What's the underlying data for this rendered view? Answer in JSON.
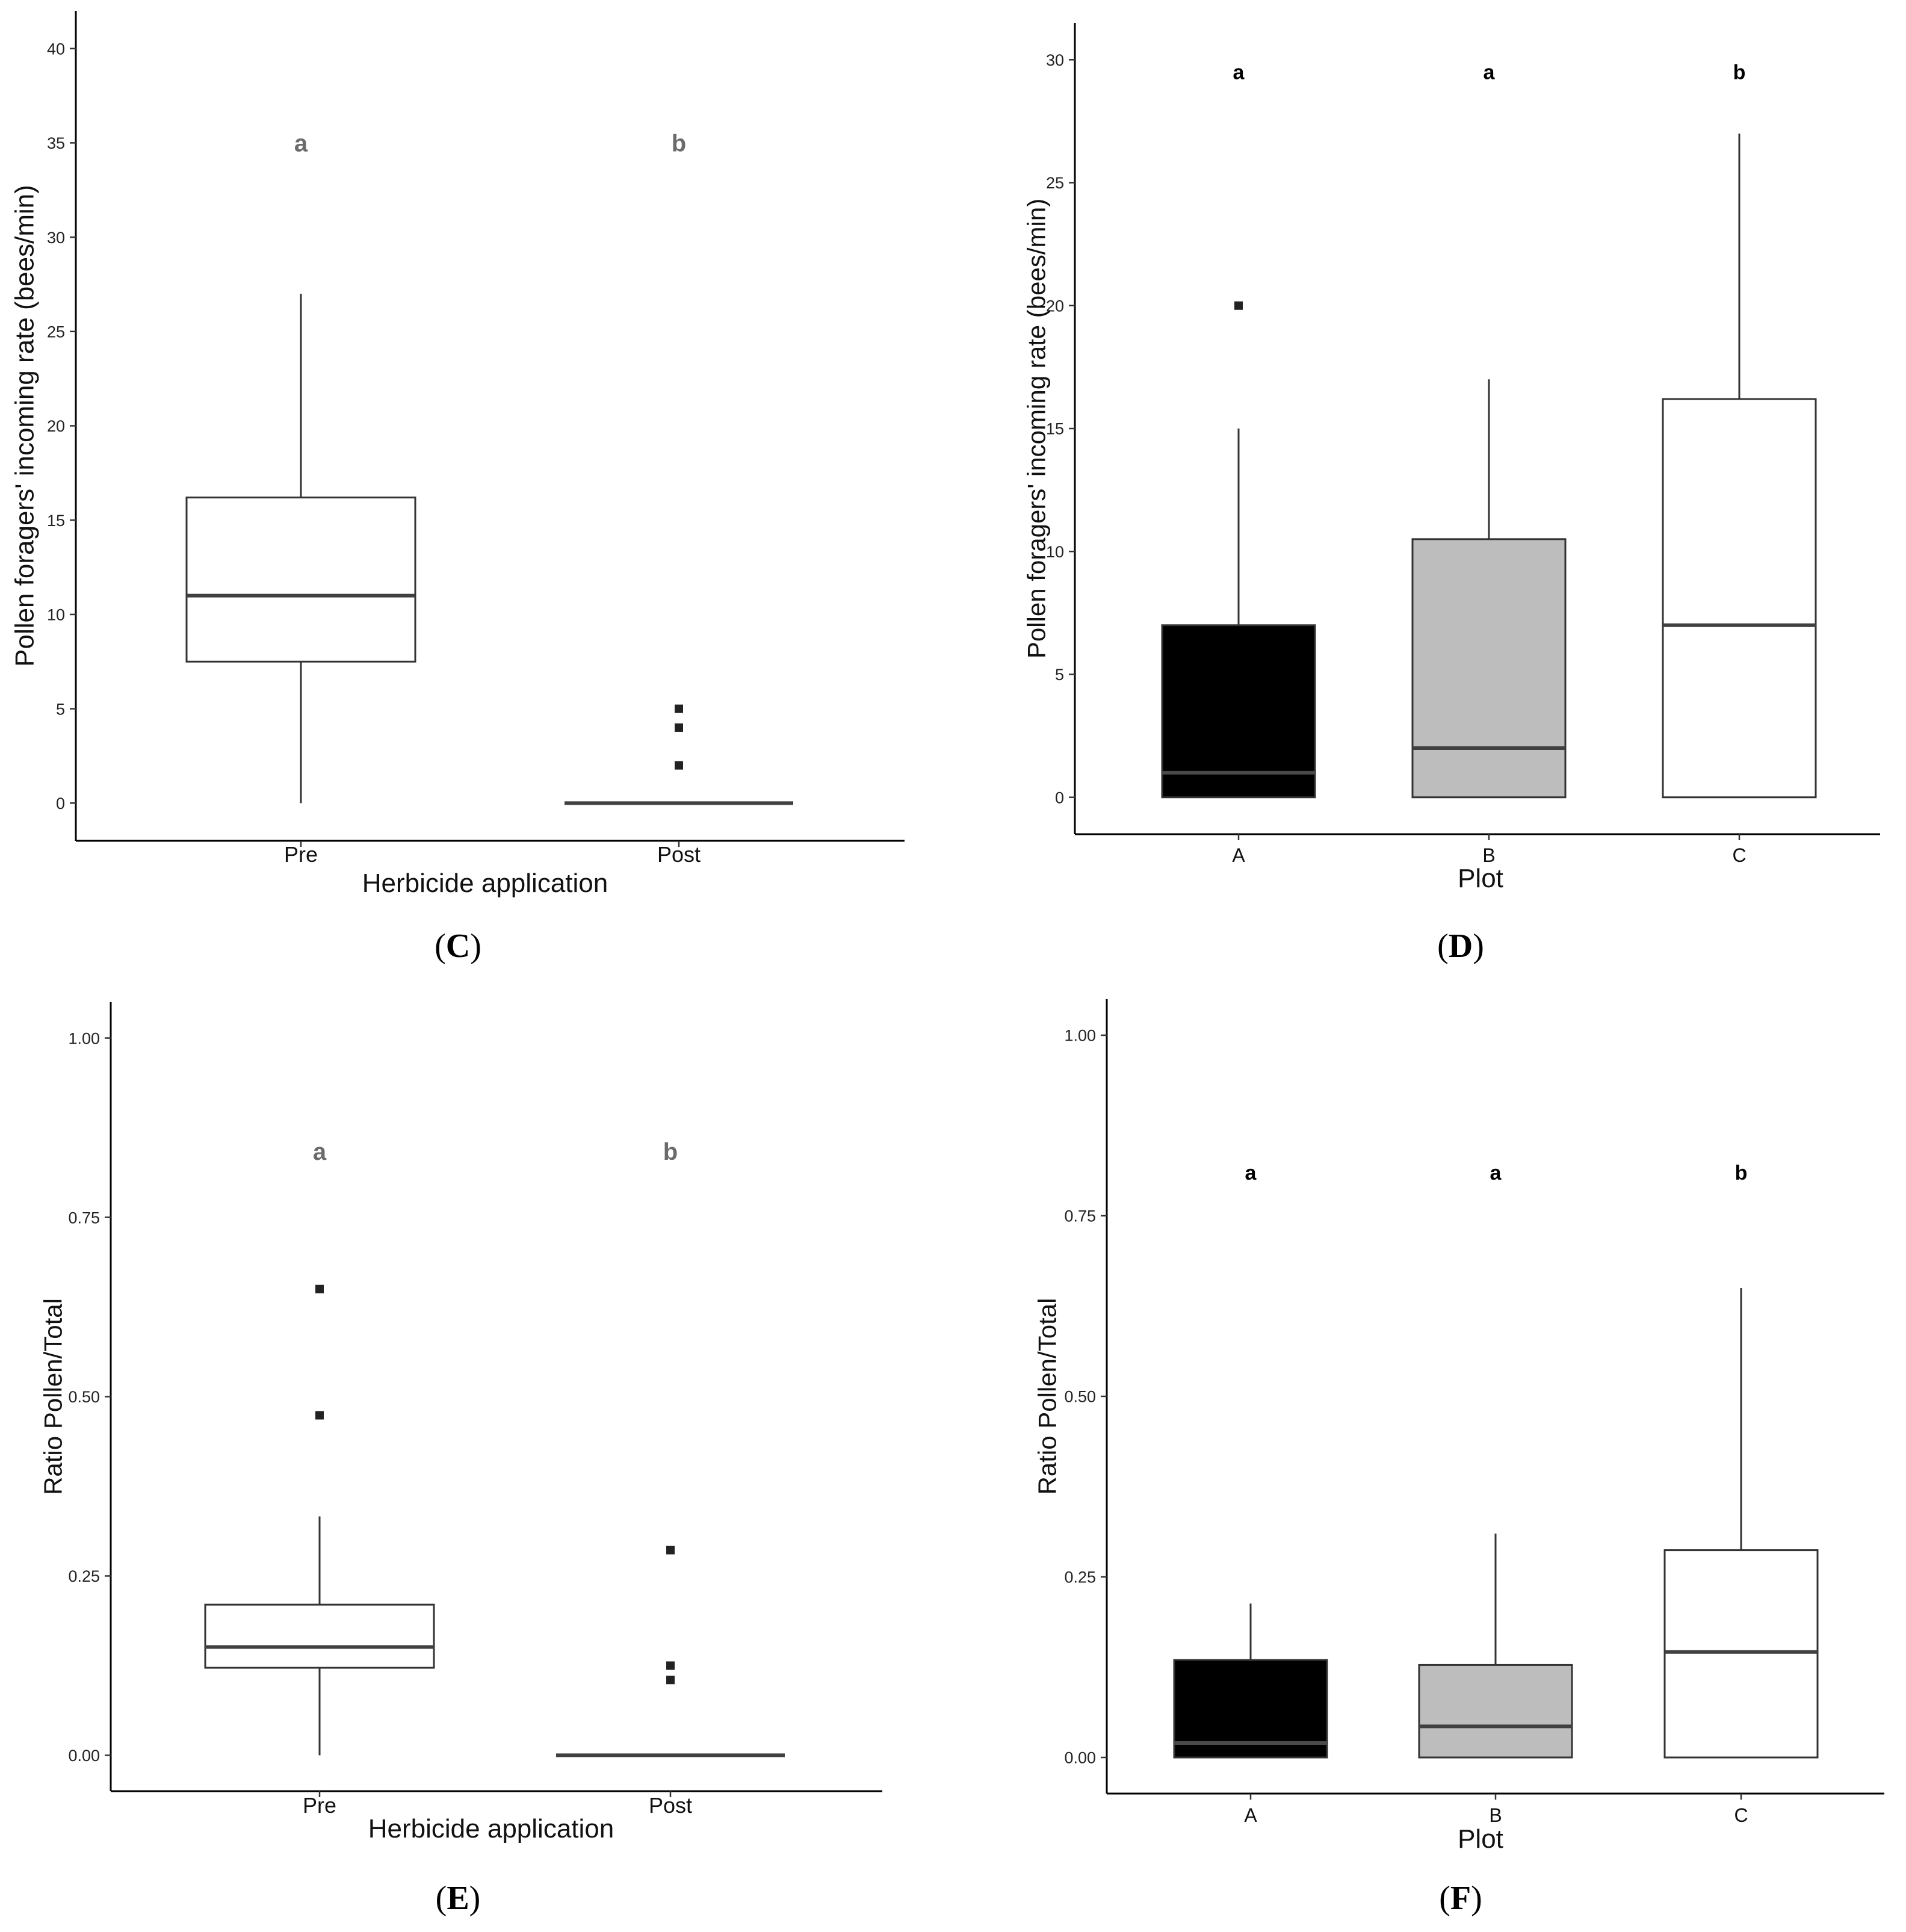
{
  "chart_data": [
    {
      "panel": "C",
      "type": "box",
      "xlabel": "Herbicide application",
      "ylabel": "Pollen foragers' incoming rate (bees/min)",
      "ylim": [
        -2,
        42
      ],
      "yticks": [
        0,
        5,
        10,
        15,
        20,
        25,
        30,
        35,
        40
      ],
      "tick_labels": [
        "0",
        "5",
        "10",
        "15",
        "20",
        "25",
        "30",
        "35",
        "40"
      ],
      "sig_level": 35,
      "sig_style": "gray",
      "categories": [
        "Pre",
        "Post"
      ],
      "boxes": [
        {
          "name": "Pre",
          "min": 0,
          "q1": 7.5,
          "median": 11,
          "q3": 16.2,
          "max": 27,
          "fill": "#ffffff",
          "median_color": "#404040",
          "outliers": [],
          "letter": "a"
        },
        {
          "name": "Post",
          "min": 0,
          "q1": 0,
          "median": 0,
          "q3": 0,
          "max": 0,
          "fill": "#ffffff",
          "median_color": "#404040",
          "outliers": [
            2,
            4,
            5
          ],
          "letter": "b"
        }
      ]
    },
    {
      "panel": "D",
      "type": "box",
      "xlabel": "Plot",
      "ylabel": "Pollen foragers' incoming rate (bees/min)",
      "ylim": [
        -1.5,
        31.5
      ],
      "yticks": [
        0,
        5,
        10,
        15,
        20,
        25,
        30
      ],
      "tick_labels": [
        "0",
        "5",
        "10",
        "15",
        "20",
        "25",
        "30"
      ],
      "sig_level": 29.5,
      "sig_style": "bold",
      "categories": [
        "A",
        "B",
        "C"
      ],
      "boxes": [
        {
          "name": "A",
          "min": 0,
          "q1": 0,
          "median": 1,
          "q3": 7,
          "max": 15,
          "fill": "#000000",
          "median_color": "#4a4a4a",
          "outliers": [
            20
          ],
          "letter": "a"
        },
        {
          "name": "B",
          "min": 0,
          "q1": 0,
          "median": 2,
          "q3": 10.5,
          "max": 17,
          "fill": "#bdbdbd",
          "median_color": "#404040",
          "outliers": [],
          "letter": "a"
        },
        {
          "name": "C",
          "min": 0,
          "q1": 0,
          "median": 7,
          "q3": 16.2,
          "max": 27,
          "fill": "#ffffff",
          "median_color": "#404040",
          "outliers": [],
          "letter": "b"
        }
      ]
    },
    {
      "panel": "E",
      "type": "box",
      "xlabel": "Herbicide application",
      "ylabel": "Ratio Pollen/Total",
      "ylim": [
        -0.05,
        1.05
      ],
      "yticks": [
        0,
        0.25,
        0.5,
        0.75,
        1.0
      ],
      "tick_labels": [
        "0.00",
        "0.25",
        "0.50",
        "0.75",
        "1.00"
      ],
      "sig_level": 0.842,
      "sig_style": "gray",
      "categories": [
        "Pre",
        "Post"
      ],
      "boxes": [
        {
          "name": "Pre",
          "min": 0,
          "q1": 0.122,
          "median": 0.151,
          "q3": 0.21,
          "max": 0.333,
          "fill": "#ffffff",
          "median_color": "#404040",
          "outliers": [
            0.474,
            0.65
          ],
          "letter": "a"
        },
        {
          "name": "Post",
          "min": 0,
          "q1": 0,
          "median": 0,
          "q3": 0,
          "max": 0,
          "fill": "#ffffff",
          "median_color": "#404040",
          "outliers": [
            0.105,
            0.125,
            0.286
          ],
          "letter": "b"
        }
      ]
    },
    {
      "panel": "F",
      "type": "box",
      "xlabel": "Plot",
      "ylabel": "Ratio Pollen/Total",
      "ylim": [
        -0.05,
        1.05
      ],
      "yticks": [
        0,
        0.25,
        0.5,
        0.75,
        1.0
      ],
      "tick_labels": [
        "0.00",
        "0.25",
        "0.50",
        "0.75",
        "1.00"
      ],
      "sig_level": 0.81,
      "sig_style": "bold",
      "categories": [
        "A",
        "B",
        "C"
      ],
      "boxes": [
        {
          "name": "A",
          "min": 0,
          "q1": 0,
          "median": 0.02,
          "q3": 0.135,
          "max": 0.213,
          "fill": "#000000",
          "median_color": "#4a4a4a",
          "outliers": [],
          "letter": "a"
        },
        {
          "name": "B",
          "min": 0,
          "q1": 0,
          "median": 0.043,
          "q3": 0.128,
          "max": 0.31,
          "fill": "#bdbdbd",
          "median_color": "#404040",
          "outliers": [],
          "letter": "a"
        },
        {
          "name": "C",
          "min": 0,
          "q1": 0,
          "median": 0.146,
          "q3": 0.287,
          "max": 0.65,
          "fill": "#ffffff",
          "median_color": "#404040",
          "outliers": [],
          "letter": "b"
        }
      ]
    }
  ]
}
